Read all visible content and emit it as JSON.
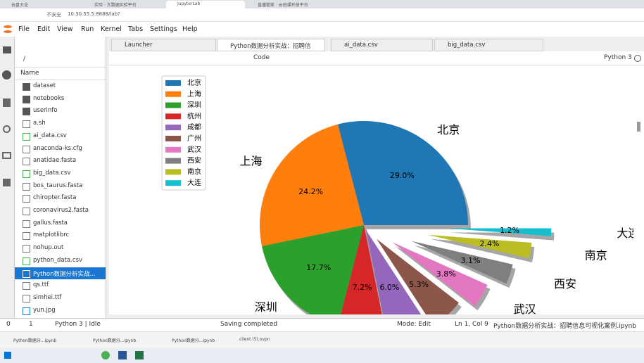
{
  "browser": {
    "tabs": [
      "云盘大全",
      "实验 · 大数据实验平台",
      "JupyterLab",
      "直播管家 · 云班课开放平台"
    ],
    "security": "不安全",
    "url": "10.30.55.5:8888/lab?"
  },
  "menu": [
    "File",
    "Edit",
    "View",
    "Run",
    "Kernel",
    "Tabs",
    "Settings",
    "Help"
  ],
  "file_browser": {
    "path": "/",
    "column": "Name",
    "items": [
      "dataset",
      "notebooks",
      "userinfo",
      "a.sh",
      "ai_data.csv",
      "anaconda-ks.cfg",
      "anatidae.fasta",
      "big_data.csv",
      "bos_taurus.fasta",
      "chiropter.fasta",
      "coronavirus2.fasta",
      "gallus.fasta",
      "matplotlibrc",
      "nohup.out",
      "python_data.csv",
      "Python数据分析实战...",
      "qs.ttf",
      "simhei.ttf",
      "yun.jpg"
    ]
  },
  "notebook_tabs": [
    "Launcher",
    "Python数据分析实战：招聘信",
    "ai_data.csv",
    "big_data.csv"
  ],
  "toolbar": {
    "cell_type": "Code",
    "kernel": "Python 3"
  },
  "chart_data": {
    "type": "pie",
    "categories": [
      "北京",
      "上海",
      "深圳",
      "杭州",
      "成都",
      "广州",
      "武汉",
      "西安",
      "南京",
      "大连"
    ],
    "values": [
      29.0,
      24.2,
      17.7,
      7.2,
      6.0,
      5.3,
      3.8,
      3.1,
      2.4,
      1.2
    ],
    "value_labels": [
      "29.0%",
      "24.2%",
      "17.7%",
      "7.2%",
      "6.0%",
      "5.3%",
      "3.8%",
      "3.1%",
      "2.4%",
      "1.2%"
    ],
    "colors": [
      "#1f77b4",
      "#ff7f0e",
      "#2ca02c",
      "#d62728",
      "#9467bd",
      "#8c564b",
      "#e377c2",
      "#7f7f7f",
      "#bcbd22",
      "#17becf"
    ],
    "legend": "upper left",
    "shadow": true
  },
  "status_bar": {
    "cells": "0",
    "count": "1",
    "kernel": "Python 3 | Idle",
    "message": "Saving completed",
    "mode": "Mode: Edit",
    "position": "Ln 1, Col 9",
    "file": "Python数据分析实战：招聘信息可视化案例.ipynb"
  },
  "taskbar": {
    "windows": [
      "Python数据分...ipynb",
      "Python数据分...ipynb",
      "Python数据分...ipynb",
      "client (5).ovpn"
    ]
  }
}
